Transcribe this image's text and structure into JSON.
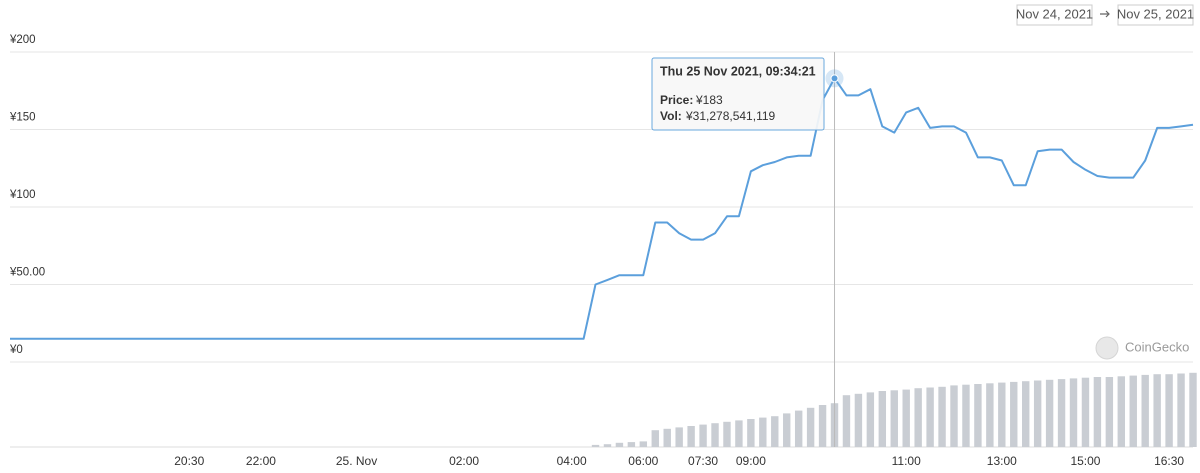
{
  "date_range": {
    "from": "Nov 24, 2021",
    "to": "Nov 25, 2021"
  },
  "watermark": "CoinGecko",
  "tooltip": {
    "date": "Thu 25 Nov 2021, 09:34:21",
    "price_label": "Price:",
    "price": "¥183",
    "vol_label": "Vol:",
    "vol": "¥31,278,541,119"
  },
  "chart_data": {
    "type": "line",
    "categories": [
      null,
      null,
      null,
      null,
      null,
      null,
      null,
      null,
      null,
      null,
      null,
      null,
      null,
      null,
      null,
      "20:30",
      null,
      null,
      null,
      null,
      null,
      "22:00",
      null,
      null,
      null,
      null,
      null,
      null,
      null,
      "25. Nov",
      null,
      null,
      null,
      null,
      null,
      null,
      null,
      null,
      "02:00",
      null,
      null,
      null,
      null,
      null,
      null,
      null,
      null,
      "04:00",
      null,
      null,
      null,
      null,
      null,
      "06:00",
      null,
      null,
      null,
      null,
      "07:30",
      null,
      null,
      null,
      "09:00",
      null,
      null,
      null,
      null,
      null,
      null,
      null,
      null,
      null,
      null,
      null,
      null,
      "11:00",
      null,
      null,
      null,
      null,
      null,
      null,
      null,
      "13:00",
      null,
      null,
      null,
      null,
      null,
      null,
      "15:00",
      null,
      null,
      null,
      null,
      null,
      null,
      "16:30",
      null,
      null
    ],
    "series": [
      {
        "name": "Price",
        "color": "#5b9fdc",
        "values": [
          15,
          15,
          15,
          15,
          15,
          15,
          15,
          15,
          15,
          15,
          15,
          15,
          15,
          15,
          15,
          15,
          15,
          15,
          15,
          15,
          15,
          15,
          15,
          15,
          15,
          15,
          15,
          15,
          15,
          15,
          15,
          15,
          15,
          15,
          15,
          15,
          15,
          15,
          15,
          15,
          15,
          15,
          15,
          15,
          15,
          15,
          15,
          15,
          15,
          50,
          53,
          56,
          56,
          56,
          90,
          90,
          83,
          79,
          79,
          83,
          94,
          94,
          123,
          127,
          129,
          132,
          133,
          133,
          169,
          183,
          172,
          172,
          176,
          152,
          148,
          161,
          164,
          151,
          152,
          152,
          148,
          132,
          132,
          130,
          114,
          114,
          136,
          137,
          137,
          129,
          124,
          120,
          119,
          119,
          119,
          130,
          151,
          151,
          152,
          153
        ]
      },
      {
        "name": "Vol",
        "color": "#c9cdd3",
        "axis": "y2",
        "values": [
          0,
          0,
          0,
          0,
          0,
          0,
          0,
          0,
          0,
          0,
          0,
          0,
          0,
          0,
          0,
          0,
          0,
          0,
          0,
          0,
          0,
          0,
          0,
          0,
          0,
          0,
          0,
          0,
          0,
          0,
          0,
          0,
          0,
          0,
          0,
          0,
          0,
          0,
          0,
          0,
          0,
          0,
          0,
          0,
          0,
          0,
          0,
          0,
          0,
          1500000000.0,
          2000000000.0,
          3000000000.0,
          3500000000.0,
          4000000000.0,
          12000000000.0,
          13000000000.0,
          14000000000.0,
          15000000000.0,
          16000000000.0,
          17000000000.0,
          18000000000.0,
          19000000000.0,
          20000000000.0,
          21000000000.0,
          22000000000.0,
          24000000000.0,
          26000000000.0,
          28000000000.0,
          30000000000.0,
          31278541119,
          37000000000.0,
          38000000000.0,
          39000000000.0,
          40000000000.0,
          40500000000.0,
          41000000000.0,
          42000000000.0,
          42500000000.0,
          43000000000.0,
          44000000000.0,
          44500000000.0,
          45000000000.0,
          45500000000.0,
          46000000000.0,
          46500000000.0,
          47000000000.0,
          47500000000.0,
          48000000000.0,
          48500000000.0,
          49000000000.0,
          49500000000.0,
          50000000000.0,
          50000000000.0,
          50500000000.0,
          51000000000.0,
          51500000000.0,
          52000000000.0,
          52000000000.0,
          52500000000.0,
          53000000000.0
        ]
      }
    ],
    "ylim": [
      0,
      200
    ],
    "yticks": [
      {
        "value": 0,
        "label": "¥0"
      },
      {
        "value": 50,
        "label": "¥50.00"
      },
      {
        "value": 100,
        "label": "¥100"
      },
      {
        "value": 150,
        "label": "¥150"
      },
      {
        "value": 200,
        "label": "¥200"
      }
    ],
    "y2lim": [
      0,
      55000000000
    ],
    "grid": true
  }
}
